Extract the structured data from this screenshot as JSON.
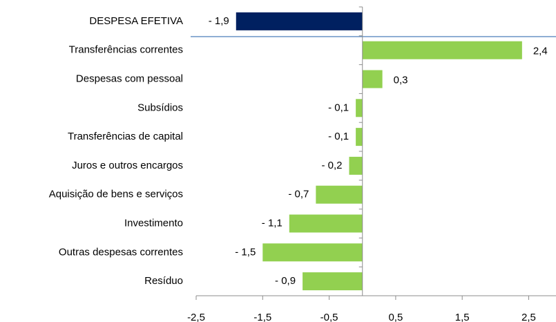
{
  "chart_data": {
    "type": "barh",
    "categories": [
      "DESPESA EFETIVA",
      "Transferências correntes",
      "Despesas com pessoal",
      "Subsídios",
      "Transferências de capital",
      "Juros e outros encargos",
      "Aquisição de bens e serviços",
      "Investimento",
      "Outras despesas correntes",
      "Resíduo"
    ],
    "values": [
      -1.9,
      2.4,
      0.3,
      -0.1,
      -0.1,
      -0.2,
      -0.7,
      -1.1,
      -1.5,
      -0.9
    ],
    "value_labels": [
      "- 1,9",
      "2,4",
      "0,3",
      "- 0,1",
      "- 0,1",
      "- 0,2",
      "- 0,7",
      "- 1,1",
      "- 1,5",
      "- 0,9"
    ],
    "colors": [
      "#002060",
      "#92d050",
      "#92d050",
      "#92d050",
      "#92d050",
      "#92d050",
      "#92d050",
      "#92d050",
      "#92d050",
      "#92d050"
    ],
    "xlim": [
      -2.5,
      2.9
    ],
    "xticks": [
      {
        "value": -2.5,
        "label": "-2,5"
      },
      {
        "value": -1.5,
        "label": "-1,5"
      },
      {
        "value": -0.5,
        "label": "-0,5"
      },
      {
        "value": 0.5,
        "label": "0,5"
      },
      {
        "value": 1.5,
        "label": "1,5"
      },
      {
        "value": 2.5,
        "label": "2,5"
      }
    ],
    "grid": false
  }
}
